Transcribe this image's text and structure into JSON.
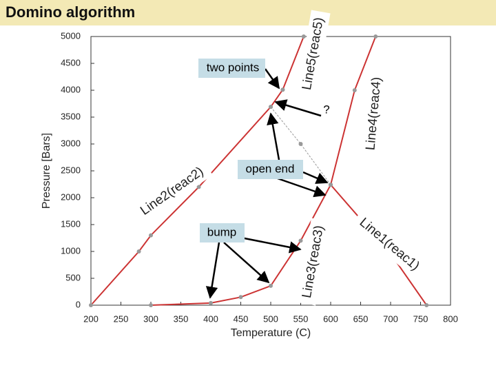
{
  "chart_data": {
    "type": "line",
    "title": "Domino algorithm",
    "x_label": "Temperature (C)",
    "y_label": "Pressure [Bars]",
    "xlim": [
      200,
      800
    ],
    "xticks": [
      200,
      250,
      300,
      350,
      400,
      450,
      500,
      550,
      600,
      650,
      700,
      750,
      800
    ],
    "ylim": [
      0,
      5000
    ],
    "yticks": [
      0,
      500,
      1000,
      1500,
      2000,
      2500,
      3000,
      3500,
      4000,
      4500,
      5000
    ],
    "series": [
      {
        "name": "Line1(reac1)",
        "color": "#cc3333",
        "x": [
          600,
          650,
          700,
          760
        ],
        "values": [
          2240,
          1600,
          960,
          0
        ]
      },
      {
        "name": "Line2(reac2)",
        "color": "#cc3333",
        "x": [
          200,
          280,
          300,
          380,
          500,
          520
        ],
        "values": [
          0,
          1000,
          1300,
          2200,
          3690,
          4010
        ]
      },
      {
        "name": "Line3(reac3)",
        "color": "#cc3333",
        "x": [
          300,
          400,
          450,
          500,
          550,
          600
        ],
        "values": [
          0,
          40,
          150,
          360,
          1200,
          2240
        ]
      },
      {
        "name": "Line4(reac4)",
        "color": "#cc3333",
        "x": [
          600,
          640,
          675
        ],
        "values": [
          2240,
          4000,
          5000
        ]
      },
      {
        "name": "Line5(reac5)",
        "color": "#cc3333",
        "x": [
          520,
          555
        ],
        "values": [
          4010,
          5000
        ]
      },
      {
        "color": "#999999",
        "x": [
          500,
          550,
          600
        ],
        "values": [
          3690,
          3000,
          2240
        ]
      }
    ],
    "annotations": [
      "two points",
      "?",
      "open end",
      "bump"
    ]
  }
}
